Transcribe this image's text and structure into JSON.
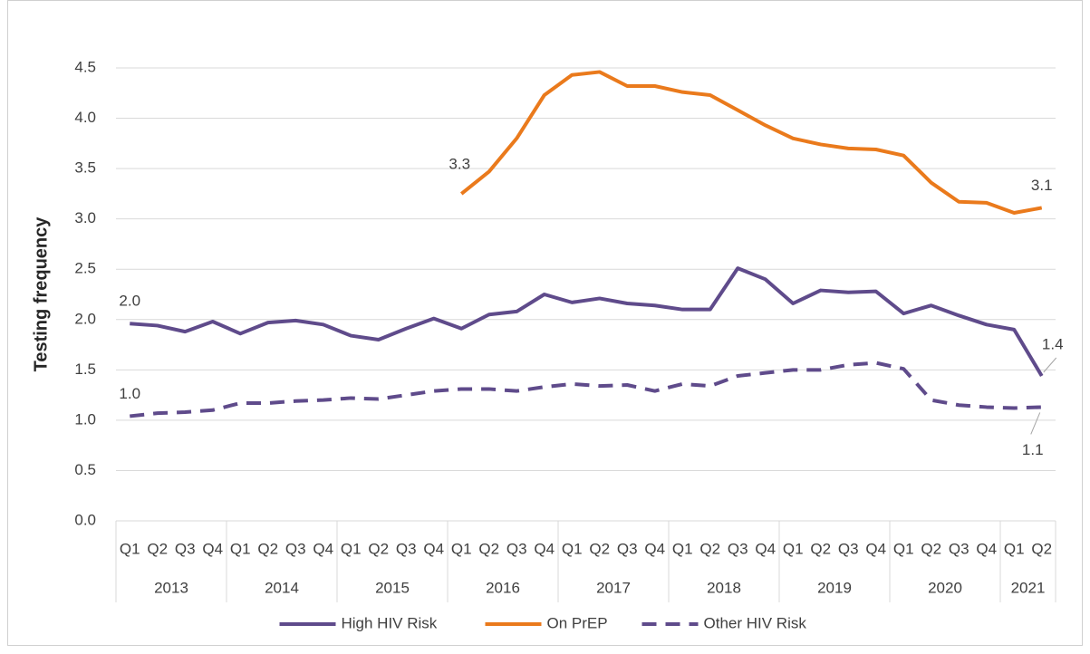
{
  "chart_data": {
    "type": "line",
    "y_label": "Testing frequency",
    "categories": [
      "Q1",
      "Q2",
      "Q3",
      "Q4",
      "Q1",
      "Q2",
      "Q3",
      "Q4",
      "Q1",
      "Q2",
      "Q3",
      "Q4",
      "Q1",
      "Q2",
      "Q3",
      "Q4",
      "Q1",
      "Q2",
      "Q3",
      "Q4",
      "Q1",
      "Q2",
      "Q3",
      "Q4",
      "Q1",
      "Q2",
      "Q3",
      "Q4",
      "Q1",
      "Q2",
      "Q3",
      "Q4",
      "Q1",
      "Q2"
    ],
    "x_groups": [
      "2013",
      "2014",
      "2015",
      "2016",
      "2017",
      "2018",
      "2019",
      "2020",
      "2021"
    ],
    "ylim": [
      0,
      4.5
    ],
    "yticks": [
      {
        "value": 0,
        "label": "0.0"
      },
      {
        "value": 0.5,
        "label": "0.5"
      },
      {
        "value": 1,
        "label": "1.0"
      },
      {
        "value": 1.5,
        "label": "1.5"
      },
      {
        "value": 2,
        "label": "2.0"
      },
      {
        "value": 2.5,
        "label": "2.5"
      },
      {
        "value": 3,
        "label": "3.0"
      },
      {
        "value": 3.5,
        "label": "3.5"
      },
      {
        "value": 4,
        "label": "4.0"
      },
      {
        "value": 4.5,
        "label": "4.5"
      }
    ],
    "grid": true,
    "legend": "bottom",
    "series": [
      {
        "name": "High HIV Risk",
        "color": "#5f4b8b",
        "dashed": false,
        "values": [
          1.96,
          1.94,
          1.88,
          1.98,
          1.86,
          1.97,
          1.99,
          1.95,
          1.84,
          1.8,
          1.91,
          2.01,
          1.91,
          2.05,
          2.08,
          2.25,
          2.17,
          2.21,
          2.16,
          2.14,
          2.1,
          2.1,
          2.51,
          2.4,
          2.16,
          2.29,
          2.27,
          2.28,
          2.06,
          2.14,
          2.04,
          1.95,
          1.9,
          1.44
        ],
        "value_labels": [
          "2.0",
          null,
          null,
          null,
          null,
          null,
          null,
          null,
          null,
          null,
          null,
          null,
          null,
          null,
          null,
          null,
          null,
          null,
          null,
          null,
          null,
          null,
          null,
          null,
          null,
          null,
          null,
          null,
          null,
          null,
          null,
          null,
          null,
          "1.4"
        ]
      },
      {
        "name": "On PrEP",
        "color": "#ea7a1c",
        "dashed": false,
        "values": [
          null,
          null,
          null,
          null,
          null,
          null,
          null,
          null,
          null,
          null,
          null,
          null,
          3.25,
          3.47,
          3.8,
          4.23,
          4.43,
          4.46,
          4.32,
          4.32,
          4.26,
          4.23,
          4.08,
          3.93,
          3.8,
          3.74,
          3.7,
          3.69,
          3.63,
          3.36,
          3.17,
          3.16,
          3.06,
          3.11
        ],
        "value_labels": [
          null,
          null,
          null,
          null,
          null,
          null,
          null,
          null,
          null,
          null,
          null,
          null,
          "3.3",
          null,
          null,
          null,
          null,
          null,
          null,
          null,
          null,
          null,
          null,
          null,
          null,
          null,
          null,
          null,
          null,
          null,
          null,
          null,
          null,
          "3.1"
        ]
      },
      {
        "name": "Other HIV Risk",
        "color": "#5f4b8b",
        "dashed": true,
        "values": [
          1.04,
          1.07,
          1.08,
          1.1,
          1.17,
          1.17,
          1.19,
          1.2,
          1.22,
          1.21,
          1.25,
          1.29,
          1.31,
          1.31,
          1.29,
          1.33,
          1.36,
          1.34,
          1.35,
          1.29,
          1.36,
          1.34,
          1.44,
          1.47,
          1.5,
          1.5,
          1.55,
          1.57,
          1.51,
          1.2,
          1.15,
          1.13,
          1.12,
          1.13
        ],
        "value_labels": [
          "1.0",
          null,
          null,
          null,
          null,
          null,
          null,
          null,
          null,
          null,
          null,
          null,
          null,
          null,
          null,
          null,
          null,
          null,
          null,
          null,
          null,
          null,
          null,
          null,
          null,
          null,
          null,
          null,
          null,
          null,
          null,
          null,
          null,
          "1.1"
        ]
      }
    ]
  }
}
